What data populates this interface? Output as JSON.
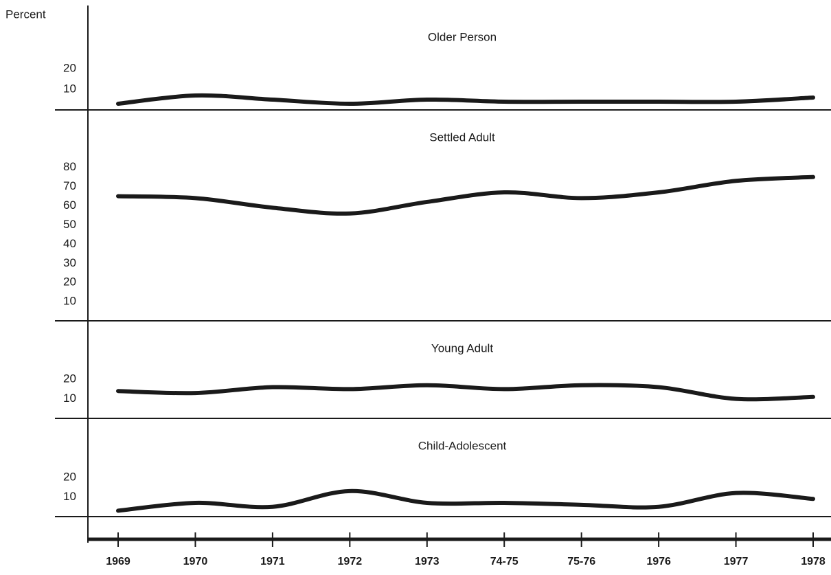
{
  "chart_data": {
    "type": "line",
    "y_label": "Percent",
    "color": "#1a1a1a",
    "categories": [
      "1969",
      "1970",
      "1971",
      "1972",
      "1973",
      "74-75",
      "75-76",
      "1976",
      "1977",
      "1978"
    ],
    "series": [
      {
        "name": "Older Person",
        "values": [
          3,
          7,
          5,
          3,
          5,
          4,
          4,
          4,
          4,
          6
        ],
        "ylim": [
          0,
          50
        ],
        "yticks": [
          10,
          20
        ]
      },
      {
        "name": "Settled Adult",
        "values": [
          65,
          64,
          59,
          56,
          62,
          67,
          64,
          67,
          73,
          75
        ],
        "ylim": [
          0,
          110
        ],
        "yticks": [
          10,
          20,
          30,
          40,
          50,
          60,
          70,
          80
        ]
      },
      {
        "name": "Young Adult",
        "values": [
          14,
          13,
          16,
          15,
          17,
          15,
          17,
          16,
          10,
          11
        ],
        "ylim": [
          0,
          50
        ],
        "yticks": [
          10,
          20
        ]
      },
      {
        "name": "Child-Adolescent",
        "values": [
          3,
          7,
          5,
          13,
          7,
          7,
          6,
          5,
          12,
          9
        ],
        "ylim": [
          0,
          50
        ],
        "yticks": [
          10,
          20
        ]
      }
    ]
  }
}
